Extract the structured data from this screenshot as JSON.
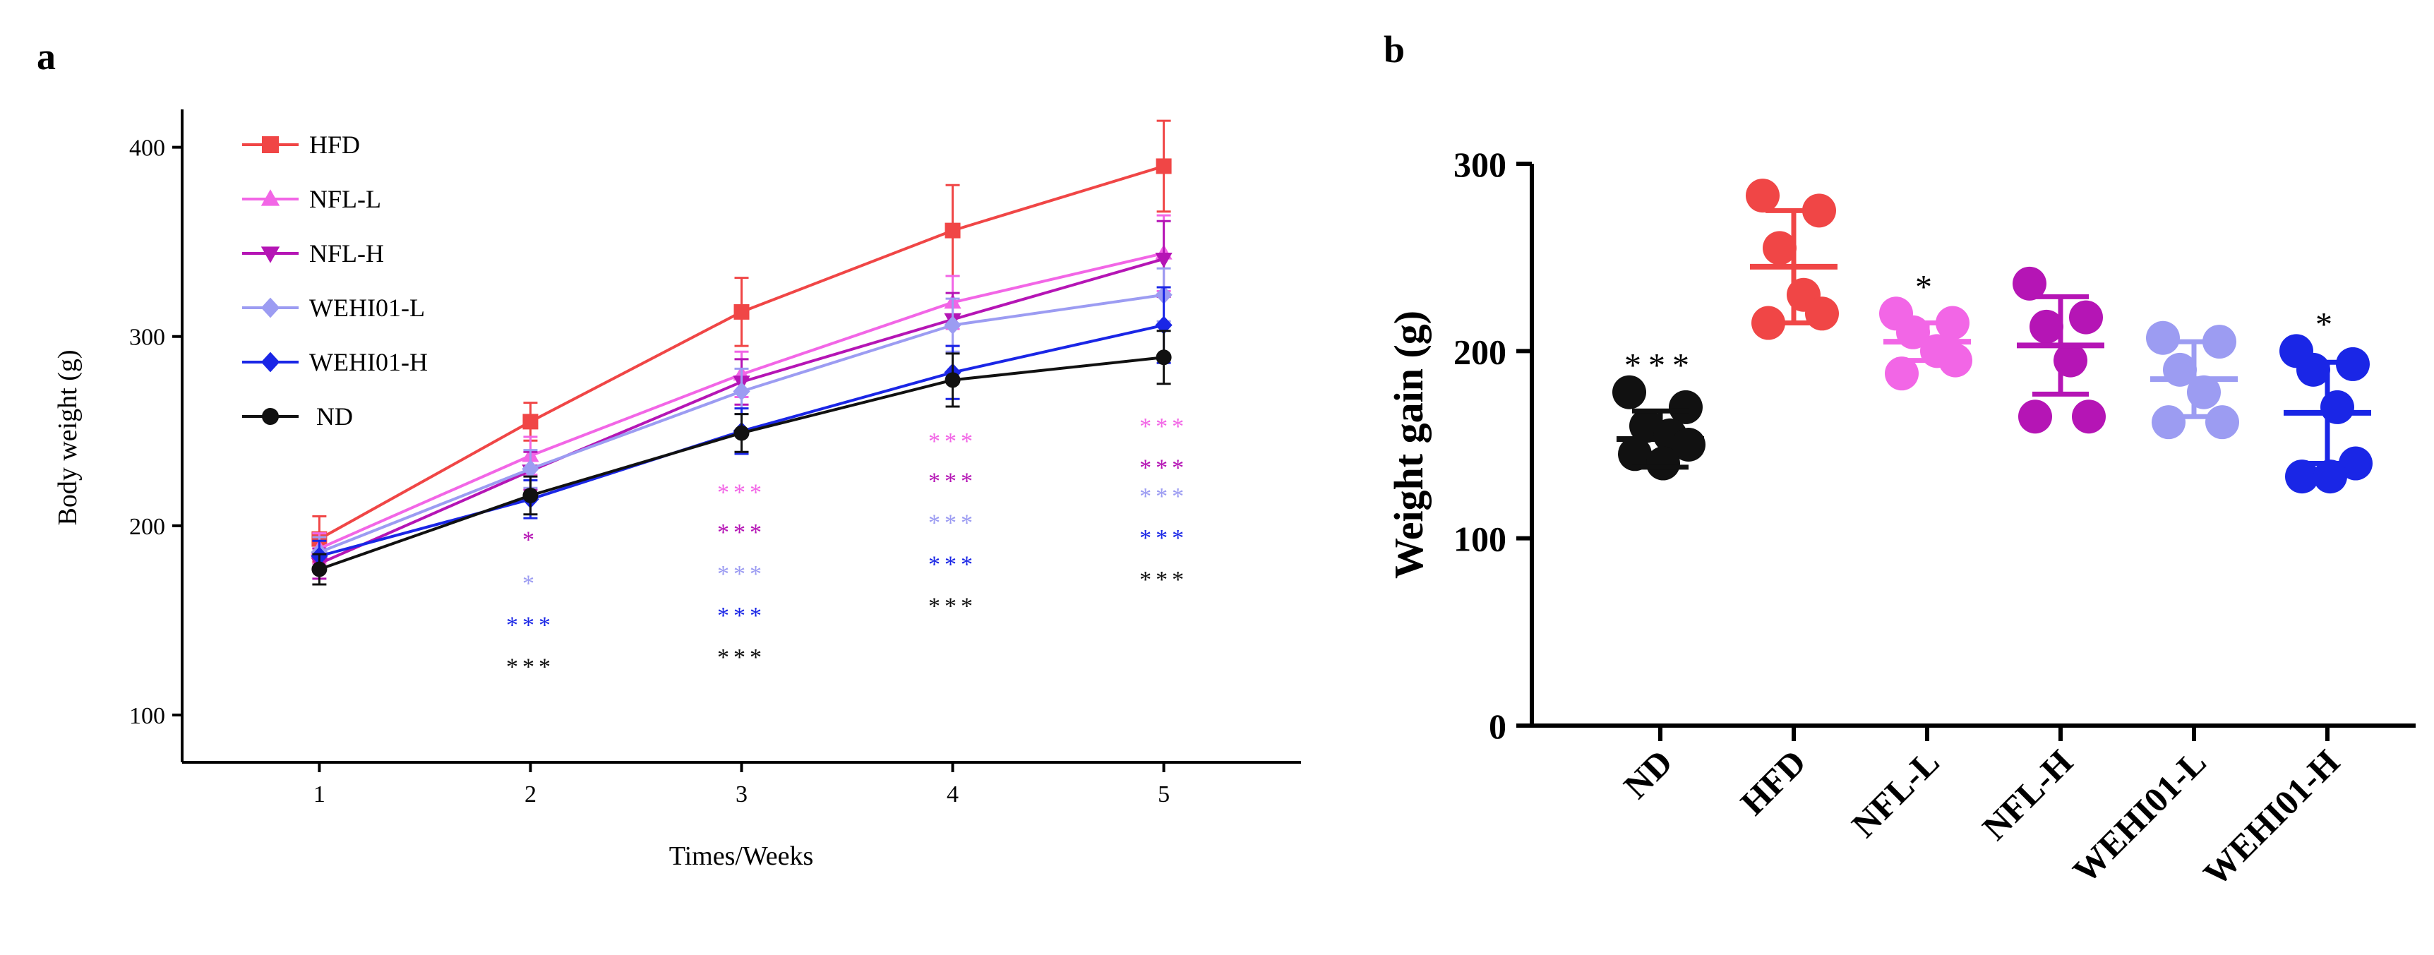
{
  "colors": {
    "HFD": "#f04646",
    "NFL-L": "#f266e6",
    "NFL-H": "#b515b5",
    "WEHI01-L": "#9c9cf2",
    "WEHI01-H": "#1a26e6",
    "ND": "#111111"
  },
  "chart_data": [
    {
      "panel_label": "a",
      "type": "line",
      "xlabel": "Times/Weeks",
      "ylabel": "Body weight (g)",
      "x": [
        1,
        2,
        3,
        4,
        5
      ],
      "x_tick_labels": [
        "1",
        "2",
        "3",
        "4",
        "5"
      ],
      "xlim": [
        0.35,
        5.65
      ],
      "ylim": [
        75,
        420
      ],
      "y_ticks": [
        100,
        200,
        300,
        400
      ],
      "y_tick_labels": [
        "100",
        "200",
        "300",
        "400"
      ],
      "legend_position": "top-left",
      "series": [
        {
          "name": "HFD",
          "marker": "square",
          "values": [
            193,
            255,
            313,
            356,
            390
          ],
          "errors": [
            12,
            10,
            18,
            24,
            24
          ]
        },
        {
          "name": "NFL-L",
          "marker": "triangle-up",
          "values": [
            188,
            237,
            280,
            318,
            344
          ],
          "errors": [
            8,
            10,
            12,
            14,
            20
          ]
        },
        {
          "name": "NFL-H",
          "marker": "triangle-down",
          "values": [
            180,
            229,
            276,
            309,
            341
          ],
          "errors": [
            8,
            10,
            12,
            14,
            20
          ]
        },
        {
          "name": "WEHI01-L",
          "marker": "diamond",
          "values": [
            186,
            230,
            271,
            306,
            322
          ],
          "errors": [
            8,
            10,
            12,
            14,
            14
          ]
        },
        {
          "name": "WEHI01-H",
          "marker": "diamond",
          "values": [
            184,
            214,
            250,
            281,
            306
          ],
          "errors": [
            8,
            10,
            12,
            14,
            20
          ]
        },
        {
          "name": "ND",
          "marker": "circle",
          "values": [
            177,
            216,
            249,
            277,
            289
          ],
          "errors": [
            8,
            10,
            10,
            14,
            14
          ]
        }
      ],
      "significance": [
        {
          "x": 2,
          "marks": [
            {
              "series": "NFL-H",
              "text": "*",
              "y": 193
            },
            {
              "series": "WEHI01-L",
              "text": "*",
              "y": 170
            },
            {
              "series": "WEHI01-H",
              "text": "***",
              "y": 148
            },
            {
              "series": "ND",
              "text": "***",
              "y": 126
            }
          ]
        },
        {
          "x": 3,
          "marks": [
            {
              "series": "NFL-L",
              "text": "***",
              "y": 218
            },
            {
              "series": "NFL-H",
              "text": "***",
              "y": 197
            },
            {
              "series": "WEHI01-L",
              "text": "***",
              "y": 175
            },
            {
              "series": "WEHI01-H",
              "text": "***",
              "y": 153
            },
            {
              "series": "ND",
              "text": "***",
              "y": 131
            }
          ]
        },
        {
          "x": 4,
          "marks": [
            {
              "series": "NFL-L",
              "text": "***",
              "y": 245
            },
            {
              "series": "NFL-H",
              "text": "***",
              "y": 224
            },
            {
              "series": "WEHI01-L",
              "text": "***",
              "y": 202
            },
            {
              "series": "WEHI01-H",
              "text": "***",
              "y": 180
            },
            {
              "series": "ND",
              "text": "***",
              "y": 158
            }
          ]
        },
        {
          "x": 5,
          "marks": [
            {
              "series": "NFL-L",
              "text": "***",
              "y": 253
            },
            {
              "series": "NFL-H",
              "text": "***",
              "y": 231
            },
            {
              "series": "WEHI01-L",
              "text": "***",
              "y": 216
            },
            {
              "series": "WEHI01-H",
              "text": "***",
              "y": 194
            },
            {
              "series": "ND",
              "text": "***",
              "y": 172
            }
          ]
        }
      ]
    },
    {
      "panel_label": "b",
      "type": "scatter",
      "xlabel": "",
      "ylabel": "Weight gain (g)",
      "categories": [
        "ND",
        "HFD",
        "NFL-L",
        "NFL-H",
        "WEHI01-L",
        "WEHI01-H"
      ],
      "ylim": [
        0,
        300
      ],
      "y_ticks": [
        0,
        100,
        200,
        300
      ],
      "y_tick_labels": [
        "0",
        "100",
        "200",
        "300"
      ],
      "series": [
        {
          "name": "ND",
          "points": [
            178,
            170,
            160,
            155,
            150,
            145,
            140
          ],
          "mean": 153,
          "sd": 15,
          "significance": "***"
        },
        {
          "name": "HFD",
          "points": [
            283,
            275,
            255,
            230,
            220,
            215
          ],
          "mean": 245,
          "sd": 30,
          "significance": ""
        },
        {
          "name": "NFL-L",
          "points": [
            220,
            215,
            210,
            200,
            195,
            188
          ],
          "mean": 205,
          "sd": 10,
          "significance": "*"
        },
        {
          "name": "NFL-H",
          "points": [
            236,
            218,
            213,
            195,
            165,
            165
          ],
          "mean": 203,
          "sd": 26,
          "significance": ""
        },
        {
          "name": "WEHI01-L",
          "points": [
            207,
            205,
            190,
            178,
            162,
            162
          ],
          "mean": 185,
          "sd": 20,
          "significance": ""
        },
        {
          "name": "WEHI01-H",
          "points": [
            200,
            193,
            190,
            170,
            140,
            133,
            133
          ],
          "mean": 167,
          "sd": 27,
          "significance": "*"
        }
      ]
    }
  ]
}
